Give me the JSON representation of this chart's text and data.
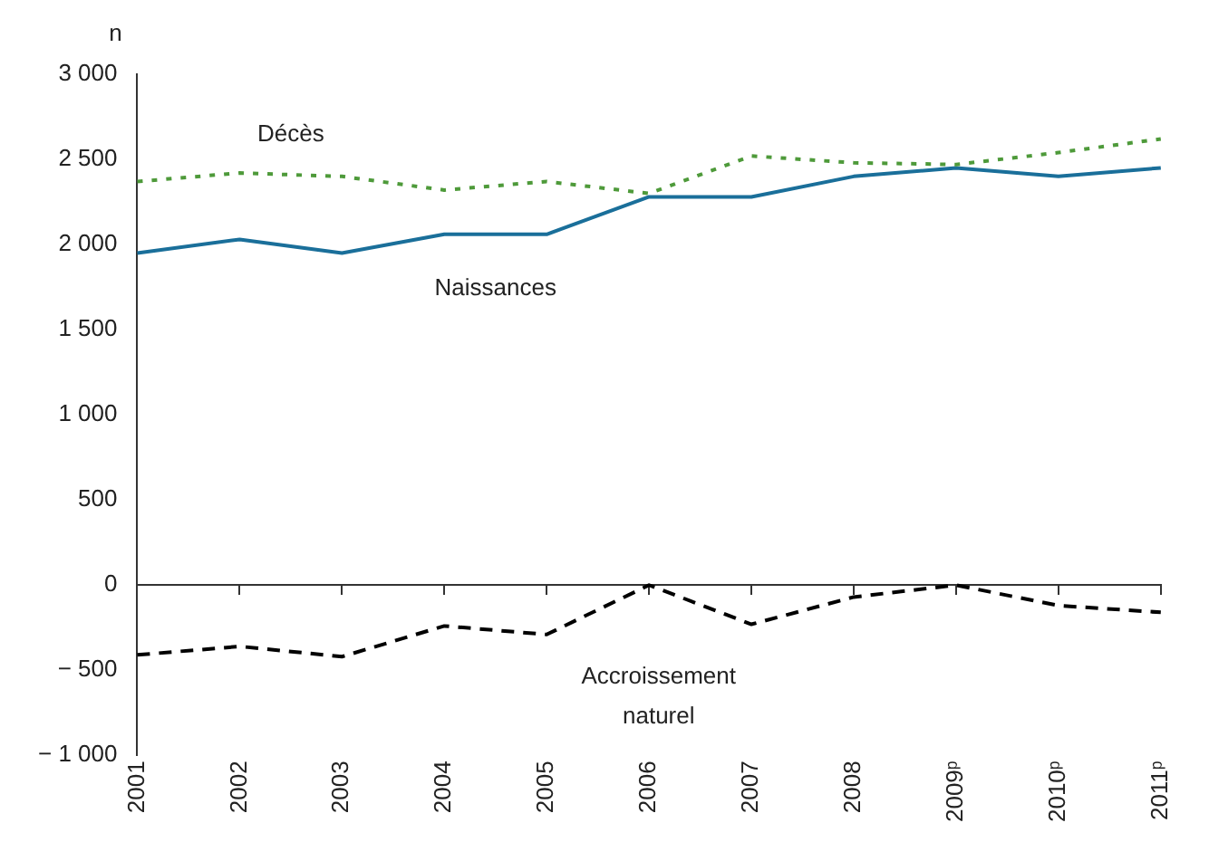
{
  "chart_data": {
    "type": "line",
    "ylabel": "n",
    "categories": [
      "2001",
      "2002",
      "2003",
      "2004",
      "2005",
      "2006",
      "2007",
      "2008",
      "2009ᵖ",
      "2010ᵖ",
      "2011ᵖ"
    ],
    "series": [
      {
        "name": "Décès",
        "color": "#4e9a3a",
        "line_style": "dotted",
        "values": [
          2370,
          2420,
          2400,
          2320,
          2370,
          2300,
          2520,
          2480,
          2470,
          2540,
          2620
        ]
      },
      {
        "name": "Naissances",
        "color": "#1a6f9a",
        "line_style": "solid",
        "values": [
          1950,
          2030,
          1950,
          2060,
          2060,
          2280,
          2280,
          2400,
          2450,
          2400,
          2450
        ]
      },
      {
        "name": "Accroissement naturel",
        "color": "#000000",
        "line_style": "dashed",
        "values": [
          -410,
          -360,
          -420,
          -240,
          -290,
          0,
          -230,
          -70,
          0,
          -120,
          -160
        ]
      }
    ],
    "ylim": [
      -1000,
      3000
    ],
    "yticks": [
      {
        "value": -1000,
        "label": "− 1 000"
      },
      {
        "value": -500,
        "label": "− 500"
      },
      0,
      500,
      {
        "value": 1000,
        "label": "1 000"
      },
      {
        "value": 1500,
        "label": "1 500"
      },
      {
        "value": 2000,
        "label": "2 000"
      },
      {
        "value": 2500,
        "label": "2 500"
      },
      {
        "value": 3000,
        "label": "3 000"
      }
    ],
    "ref_lines": [
      {
        "axis": "y",
        "value": 0,
        "color": "#333333"
      }
    ],
    "marker": "none",
    "grid": false,
    "legend": false
  }
}
